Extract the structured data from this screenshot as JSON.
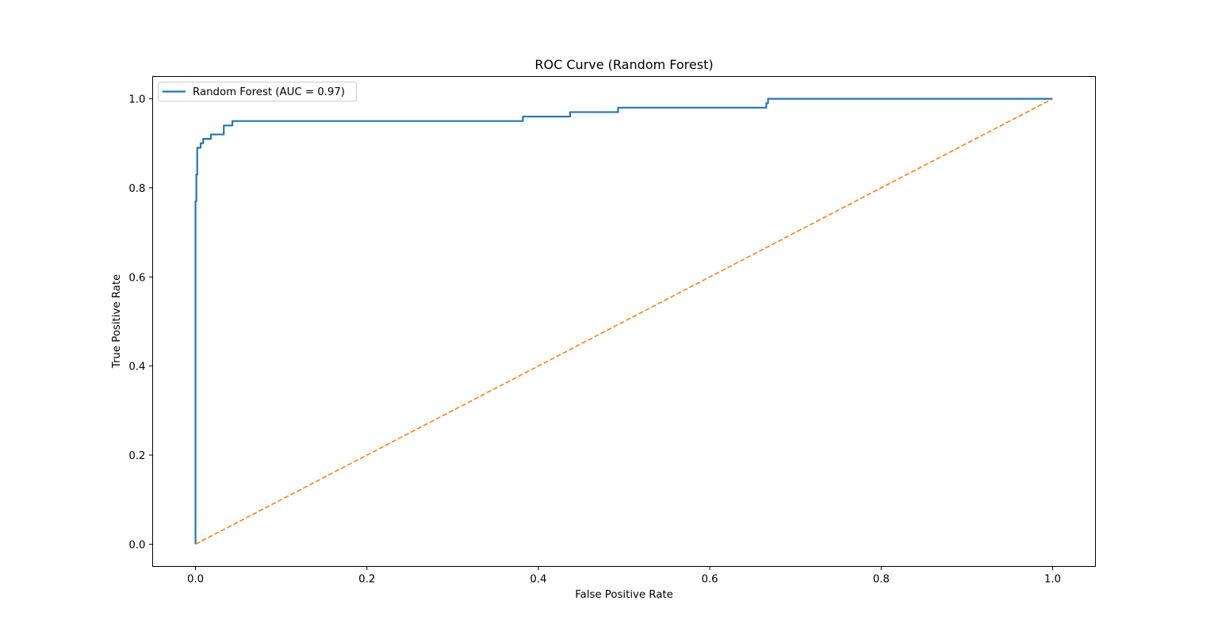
{
  "chart_data": {
    "type": "line",
    "title": "ROC Curve (Random Forest)",
    "xlabel": "False Positive Rate",
    "ylabel": "True Positive Rate",
    "xlim": [
      -0.05,
      1.05
    ],
    "ylim": [
      -0.05,
      1.05
    ],
    "grid": false,
    "legend_position": "top-left",
    "x_ticks": [
      {
        "value": 0.0,
        "label": "0.0"
      },
      {
        "value": 0.2,
        "label": "0.2"
      },
      {
        "value": 0.4,
        "label": "0.4"
      },
      {
        "value": 0.6,
        "label": "0.6"
      },
      {
        "value": 0.8,
        "label": "0.8"
      },
      {
        "value": 1.0,
        "label": "1.0"
      }
    ],
    "y_ticks": [
      {
        "value": 0.0,
        "label": "0.0"
      },
      {
        "value": 0.2,
        "label": "0.2"
      },
      {
        "value": 0.4,
        "label": "0.4"
      },
      {
        "value": 0.6,
        "label": "0.6"
      },
      {
        "value": 0.8,
        "label": "0.8"
      },
      {
        "value": 1.0,
        "label": "1.0"
      }
    ],
    "series": [
      {
        "name": "Random Forest (AUC = 0.97)",
        "color": "#1f77b4",
        "style": "solid",
        "points": [
          [
            0.0,
            0.0
          ],
          [
            0.0,
            0.77
          ],
          [
            0.001,
            0.77
          ],
          [
            0.001,
            0.83
          ],
          [
            0.002,
            0.83
          ],
          [
            0.002,
            0.89
          ],
          [
            0.006,
            0.89
          ],
          [
            0.006,
            0.9
          ],
          [
            0.009,
            0.9
          ],
          [
            0.009,
            0.91
          ],
          [
            0.018,
            0.91
          ],
          [
            0.018,
            0.92
          ],
          [
            0.033,
            0.92
          ],
          [
            0.033,
            0.94
          ],
          [
            0.043,
            0.94
          ],
          [
            0.043,
            0.95
          ],
          [
            0.382,
            0.95
          ],
          [
            0.382,
            0.96
          ],
          [
            0.437,
            0.96
          ],
          [
            0.437,
            0.97
          ],
          [
            0.493,
            0.97
          ],
          [
            0.493,
            0.98
          ],
          [
            0.666,
            0.98
          ],
          [
            0.666,
            0.99
          ],
          [
            0.668,
            0.99
          ],
          [
            0.668,
            1.0
          ],
          [
            1.0,
            1.0
          ]
        ]
      },
      {
        "color": "#ff7f0e",
        "style": "dashed",
        "points": [
          [
            0.0,
            0.0
          ],
          [
            1.0,
            1.0
          ]
        ]
      }
    ]
  }
}
